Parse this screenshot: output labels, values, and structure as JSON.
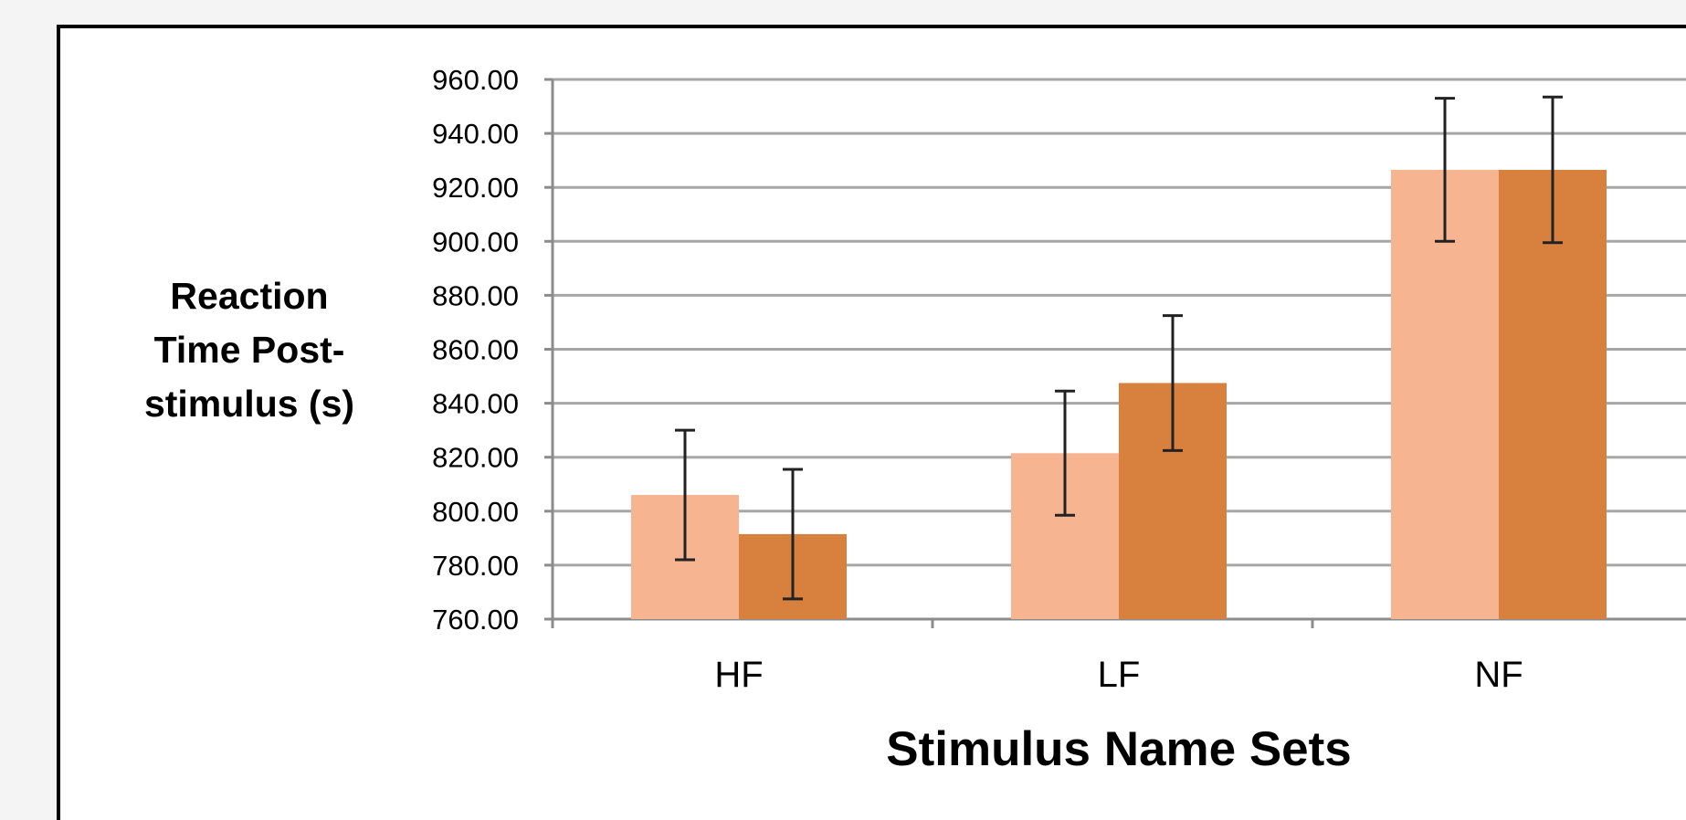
{
  "chart_data": {
    "type": "bar",
    "categories": [
      "HF",
      "LF",
      "NF"
    ],
    "series": [
      {
        "values": [
          806,
          821.5,
          926.5
        ],
        "error": [
          24,
          23,
          26.5
        ],
        "color": "#f7b491"
      },
      {
        "values": [
          791.5,
          847.5,
          926.5
        ],
        "error": [
          24,
          25,
          27
        ],
        "color": "#d8813f"
      }
    ],
    "ylim": [
      760,
      960
    ],
    "yticks": [
      "760.00",
      "780.00",
      "800.00",
      "820.00",
      "840.00",
      "860.00",
      "880.00",
      "900.00",
      "920.00",
      "940.00",
      "960.00"
    ],
    "xlabel": "Stimulus Name Sets",
    "ylabel_lines": [
      "Reaction",
      "Time Post-",
      "stimulus (s)"
    ],
    "grid": true,
    "colors": {
      "grid": "#a6a6a6",
      "axis": "#8c8c8c",
      "error_bar": "#222222",
      "frame": "#000000"
    }
  }
}
